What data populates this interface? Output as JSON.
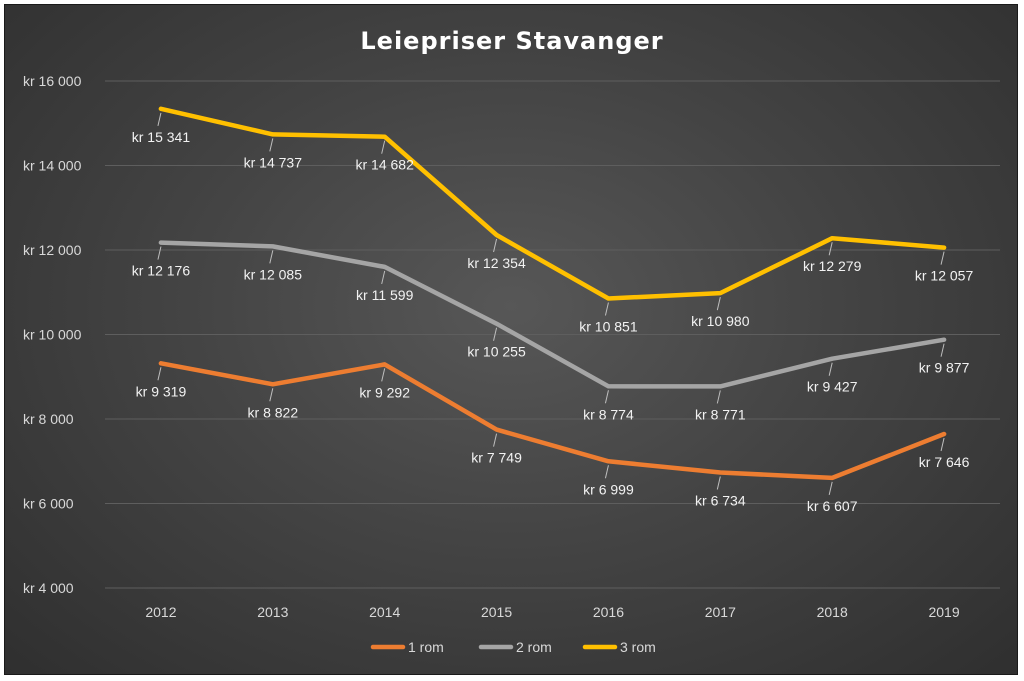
{
  "chart_data": {
    "type": "line",
    "title": "Leiepriser Stavanger",
    "categories": [
      "2012",
      "2013",
      "2014",
      "2015",
      "2016",
      "2017",
      "2018",
      "2019"
    ],
    "ylim": [
      4000,
      16000
    ],
    "yticks": [
      4000,
      6000,
      8000,
      10000,
      12000,
      14000,
      16000
    ],
    "ytick_labels": [
      "kr 4 000",
      "kr 6 000",
      "kr 8 000",
      "kr 10 000",
      "kr 12 000",
      "kr 14 000",
      "kr 16 000"
    ],
    "grid": true,
    "legend_position": "bottom",
    "series": [
      {
        "name": "1 rom",
        "color": "#ed7d31",
        "values": [
          9319,
          8822,
          9292,
          7749,
          6999,
          6734,
          6607,
          7646
        ],
        "labels": [
          "kr 9 319",
          "kr 8 822",
          "kr 9 292",
          "kr 7 749",
          "kr 6 999",
          "kr 6 734",
          "kr 6 607",
          "kr 7 646"
        ]
      },
      {
        "name": "2 rom",
        "color": "#a5a5a5",
        "values": [
          12176,
          12085,
          11599,
          10255,
          8774,
          8771,
          9427,
          9877
        ],
        "labels": [
          "kr 12 176",
          "kr 12 085",
          "kr 11 599",
          "kr 10 255",
          "kr 8 774",
          "kr 8 771",
          "kr 9 427",
          "kr 9 877"
        ]
      },
      {
        "name": "3 rom",
        "color": "#ffc000",
        "values": [
          15341,
          14737,
          14682,
          12354,
          10851,
          10980,
          12279,
          12057
        ],
        "labels": [
          "kr 15 341",
          "kr 14 737",
          "kr 14 682",
          "kr 12 354",
          "kr 10 851",
          "kr 10 980",
          "kr 12 279",
          "kr 12 057"
        ]
      }
    ]
  }
}
